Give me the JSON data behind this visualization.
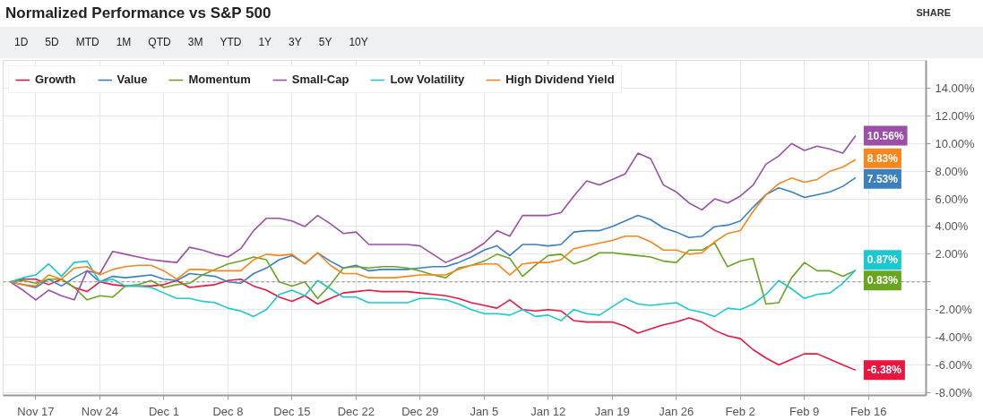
{
  "chart_data": {
    "type": "line",
    "title": "Normalized Performance vs S&P 500",
    "annotations": [
      "SHARE",
      "1D",
      "5D",
      "MTD",
      "1M",
      "QTD",
      "3M",
      "YTD",
      "1Y",
      "3Y",
      "5Y",
      "10Y"
    ],
    "categories": [
      null,
      null,
      "Nov 17",
      null,
      null,
      null,
      null,
      "Nov 24",
      null,
      null,
      null,
      null,
      "Dec 1",
      null,
      null,
      null,
      null,
      "Dec 8",
      null,
      null,
      null,
      null,
      "Dec 15",
      null,
      null,
      null,
      null,
      "Dec 22",
      null,
      null,
      null,
      null,
      "Dec 29",
      null,
      null,
      null,
      null,
      "Jan 5",
      null,
      null,
      null,
      null,
      "Jan 12",
      null,
      null,
      null,
      null,
      "Jan 19",
      null,
      null,
      null,
      null,
      "Jan 26",
      null,
      null,
      null,
      null,
      "Feb 2",
      null,
      null,
      null,
      null,
      "Feb 9",
      null,
      null,
      null,
      null,
      "Feb 16"
    ],
    "series": [
      {
        "name": "Growth",
        "color": "#e8173f",
        "values": [
          0,
          0.2,
          0.2,
          -0.2,
          0.2,
          -0.4,
          -0.7,
          0.0,
          -0.2,
          -0.3,
          -0.3,
          -0.3,
          -0.2,
          0.1,
          -0.4,
          -0.3,
          -0.2,
          0.1,
          0.2,
          -0.3,
          -0.6,
          -1.1,
          -1.4,
          -1.0,
          -1.6,
          -1.2,
          -0.8,
          -0.7,
          -0.6,
          -0.7,
          -0.7,
          -0.7,
          -0.8,
          -0.9,
          -1.0,
          -1.2,
          -1.5,
          -1.7,
          -1.9,
          -1.3,
          -2.0,
          -2.1,
          -2.0,
          -2.1,
          -2.8,
          -2.9,
          -2.9,
          -2.9,
          -3.2,
          -3.7,
          -3.4,
          -3.1,
          -2.9,
          -2.6,
          -2.9,
          -3.5,
          -3.9,
          -4.1,
          -4.9,
          -5.5,
          -6.0,
          -5.6,
          -5.2,
          -5.2,
          -5.6,
          -6.0,
          -6.38,
          null
        ],
        "value_labels": [
          null,
          null,
          null,
          null,
          null,
          null,
          null,
          null,
          null,
          null,
          null,
          null,
          null,
          null,
          null,
          null,
          null,
          null,
          null,
          null,
          null,
          null,
          null,
          null,
          null,
          null,
          null,
          null,
          null,
          null,
          null,
          null,
          null,
          null,
          null,
          null,
          null,
          null,
          null,
          null,
          null,
          null,
          null,
          null,
          null,
          null,
          null,
          null,
          null,
          null,
          null,
          null,
          null,
          null,
          null,
          null,
          null,
          null,
          null,
          null,
          null,
          null,
          null,
          null,
          null,
          null,
          "-6.38%",
          null
        ]
      },
      {
        "name": "Value",
        "color": "#3a7fc0",
        "values": [
          0,
          -0.2,
          -0.4,
          0.2,
          -0.3,
          0.3,
          0.8,
          0.0,
          0.4,
          0.3,
          0.4,
          0.5,
          0.2,
          0.1,
          0.6,
          0.5,
          0.4,
          0.0,
          -0.1,
          0.6,
          1.0,
          1.6,
          1.9,
          1.3,
          2.1,
          1.5,
          1.0,
          1.2,
          0.8,
          0.9,
          0.9,
          0.9,
          1.0,
          1.1,
          1.1,
          1.4,
          1.8,
          2.3,
          2.6,
          1.9,
          2.7,
          2.7,
          2.6,
          2.7,
          3.6,
          3.7,
          3.7,
          4.0,
          4.4,
          4.8,
          4.5,
          3.9,
          3.6,
          3.2,
          3.3,
          4.0,
          4.1,
          4.4,
          5.4,
          6.3,
          6.8,
          6.5,
          6.1,
          6.3,
          6.5,
          6.9,
          7.53,
          null
        ],
        "value_labels": [
          null,
          null,
          null,
          null,
          null,
          null,
          null,
          null,
          null,
          null,
          null,
          null,
          null,
          null,
          null,
          null,
          null,
          null,
          null,
          null,
          null,
          null,
          null,
          null,
          null,
          null,
          null,
          null,
          null,
          null,
          null,
          null,
          null,
          null,
          null,
          null,
          null,
          null,
          null,
          null,
          null,
          null,
          null,
          null,
          null,
          null,
          null,
          null,
          null,
          null,
          null,
          null,
          null,
          null,
          null,
          null,
          null,
          null,
          null,
          null,
          null,
          null,
          null,
          null,
          null,
          null,
          "7.53%",
          null
        ]
      },
      {
        "name": "Momentum",
        "color": "#6aa521",
        "values": [
          0,
          0.1,
          -0.1,
          0.2,
          0.2,
          -0.4,
          -1.3,
          -1.0,
          -1.1,
          -0.3,
          -0.2,
          0.1,
          -0.4,
          -0.2,
          -0.1,
          0.5,
          0.9,
          1.3,
          1.5,
          1.8,
          1.6,
          0.0,
          -0.3,
          0.0,
          -1.2,
          -0.2,
          1.0,
          1.1,
          1.0,
          1.1,
          1.1,
          1.0,
          0.8,
          0.5,
          0.3,
          1.0,
          1.2,
          1.5,
          2.0,
          1.7,
          0.4,
          1.2,
          1.9,
          2.0,
          1.3,
          1.6,
          2.1,
          2.1,
          2.0,
          1.9,
          1.8,
          1.5,
          1.4,
          2.3,
          2.3,
          2.8,
          1.1,
          1.5,
          1.7,
          -1.6,
          -1.5,
          0.3,
          1.4,
          0.8,
          0.8,
          0.4,
          0.83,
          null
        ],
        "value_labels": [
          null,
          null,
          null,
          null,
          null,
          null,
          null,
          null,
          null,
          null,
          null,
          null,
          null,
          null,
          null,
          null,
          null,
          null,
          null,
          null,
          null,
          null,
          null,
          null,
          null,
          null,
          null,
          null,
          null,
          null,
          null,
          null,
          null,
          null,
          null,
          null,
          null,
          null,
          null,
          null,
          null,
          null,
          null,
          null,
          null,
          null,
          null,
          null,
          null,
          null,
          null,
          null,
          null,
          null,
          null,
          null,
          null,
          null,
          null,
          null,
          null,
          null,
          null,
          null,
          null,
          null,
          "0.83%",
          null
        ]
      },
      {
        "name": "Small-Cap",
        "color": "#9b4fa6",
        "values": [
          0,
          -0.6,
          -1.3,
          -0.6,
          -1.0,
          -1.3,
          0.8,
          0.6,
          2.2,
          2.0,
          1.8,
          1.6,
          1.5,
          1.4,
          2.5,
          2.3,
          2.0,
          1.8,
          2.4,
          3.7,
          4.6,
          4.6,
          4.4,
          4.0,
          4.8,
          4.2,
          3.5,
          3.6,
          2.7,
          2.7,
          2.7,
          2.7,
          2.6,
          2.0,
          1.4,
          1.8,
          2.2,
          2.8,
          3.7,
          3.3,
          4.8,
          4.8,
          4.8,
          5.0,
          6.2,
          7.3,
          7.0,
          7.4,
          7.8,
          9.3,
          8.9,
          7.0,
          6.5,
          5.7,
          5.2,
          6.0,
          5.7,
          6.2,
          7.0,
          8.5,
          9.1,
          10.0,
          9.5,
          9.8,
          9.6,
          9.3,
          10.56,
          null
        ],
        "value_labels": [
          null,
          null,
          null,
          null,
          null,
          null,
          null,
          null,
          null,
          null,
          null,
          null,
          null,
          null,
          null,
          null,
          null,
          null,
          null,
          null,
          null,
          null,
          null,
          null,
          null,
          null,
          null,
          null,
          null,
          null,
          null,
          null,
          null,
          null,
          null,
          null,
          null,
          null,
          null,
          null,
          null,
          null,
          null,
          null,
          null,
          null,
          null,
          null,
          null,
          null,
          null,
          null,
          null,
          null,
          null,
          null,
          null,
          null,
          null,
          null,
          null,
          null,
          null,
          null,
          null,
          null,
          "10.56%",
          null
        ]
      },
      {
        "name": "Low Volatility",
        "color": "#19c9d0",
        "values": [
          0,
          0.3,
          0.5,
          1.3,
          0.4,
          1.4,
          1.5,
          0.0,
          0.2,
          -0.3,
          -0.3,
          -0.4,
          -0.8,
          -1.2,
          -1.2,
          -1.4,
          -1.5,
          -1.9,
          -2.1,
          -2.5,
          -2.0,
          -0.9,
          -0.6,
          -1.0,
          0.1,
          -0.5,
          -1.1,
          -1.1,
          -1.5,
          -1.5,
          -1.5,
          -1.5,
          -1.2,
          -1.2,
          -1.3,
          -1.6,
          -2.0,
          -2.3,
          -2.3,
          -2.4,
          -2.0,
          -2.5,
          -2.4,
          -2.8,
          -2.0,
          -2.3,
          -2.4,
          -1.8,
          -1.2,
          -1.6,
          -1.7,
          -1.6,
          -1.5,
          -2.0,
          -2.2,
          -2.5,
          -1.9,
          -2.0,
          -1.6,
          -0.9,
          0.1,
          -0.5,
          -1.2,
          -0.9,
          -0.8,
          -0.1,
          0.87,
          null
        ],
        "value_labels": [
          null,
          null,
          null,
          null,
          null,
          null,
          null,
          null,
          null,
          null,
          null,
          null,
          null,
          null,
          null,
          null,
          null,
          null,
          null,
          null,
          null,
          null,
          null,
          null,
          null,
          null,
          null,
          null,
          null,
          null,
          null,
          null,
          null,
          null,
          null,
          null,
          null,
          null,
          null,
          null,
          null,
          null,
          null,
          null,
          null,
          null,
          null,
          null,
          null,
          null,
          null,
          null,
          null,
          null,
          null,
          null,
          null,
          null,
          null,
          null,
          null,
          null,
          null,
          null,
          null,
          null,
          "0.87%",
          null
        ]
      },
      {
        "name": "High Dividend Yield",
        "color": "#f7861b",
        "values": [
          0,
          -0.2,
          -0.3,
          0.5,
          0.2,
          1.0,
          1.1,
          0.5,
          0.9,
          1.1,
          1.2,
          1.2,
          0.8,
          0.2,
          0.9,
          0.9,
          0.8,
          0.8,
          0.8,
          1.6,
          2.0,
          1.9,
          2.0,
          1.3,
          2.1,
          1.2,
          0.6,
          0.6,
          0.3,
          0.3,
          0.3,
          0.4,
          0.5,
          0.5,
          0.5,
          0.9,
          1.2,
          1.3,
          1.3,
          0.5,
          1.3,
          1.4,
          1.4,
          1.6,
          2.4,
          2.6,
          2.8,
          3.0,
          3.3,
          3.3,
          2.9,
          2.3,
          2.3,
          2.0,
          2.1,
          2.9,
          3.5,
          3.7,
          5.1,
          6.3,
          7.1,
          7.5,
          7.2,
          7.4,
          8.0,
          8.3,
          8.83,
          null
        ],
        "value_labels": [
          null,
          null,
          null,
          null,
          null,
          null,
          null,
          null,
          null,
          null,
          null,
          null,
          null,
          null,
          null,
          null,
          null,
          null,
          null,
          null,
          null,
          null,
          null,
          null,
          null,
          null,
          null,
          null,
          null,
          null,
          null,
          null,
          null,
          null,
          null,
          null,
          null,
          null,
          null,
          null,
          null,
          null,
          null,
          null,
          null,
          null,
          null,
          null,
          null,
          null,
          null,
          null,
          null,
          null,
          null,
          null,
          null,
          null,
          null,
          null,
          null,
          null,
          null,
          null,
          null,
          null,
          "8.83%",
          null
        ]
      }
    ],
    "ylim": [
      -8.2,
      16
    ],
    "yticks": [
      {
        "value": -8,
        "label": "-8.00%"
      },
      {
        "value": -6,
        "label": "-6.00%"
      },
      {
        "value": -4,
        "label": "-4.00%"
      },
      {
        "value": -2,
        "label": "-2.00%"
      },
      {
        "value": 0,
        "label": null
      },
      {
        "value": 2,
        "label": "2.00%"
      },
      {
        "value": 4,
        "label": "4.00%"
      },
      {
        "value": 6,
        "label": "6.00%"
      },
      {
        "value": 8,
        "label": "8.00%"
      },
      {
        "value": 10,
        "label": "10.00%"
      },
      {
        "value": 12,
        "label": "12.00%"
      },
      {
        "value": 14,
        "label": "14.00%"
      }
    ],
    "ref_lines": [
      {
        "axis": "y",
        "value": 0,
        "color": "#888888",
        "line_style": "dashed"
      }
    ],
    "grid": true,
    "legend": "top left"
  }
}
